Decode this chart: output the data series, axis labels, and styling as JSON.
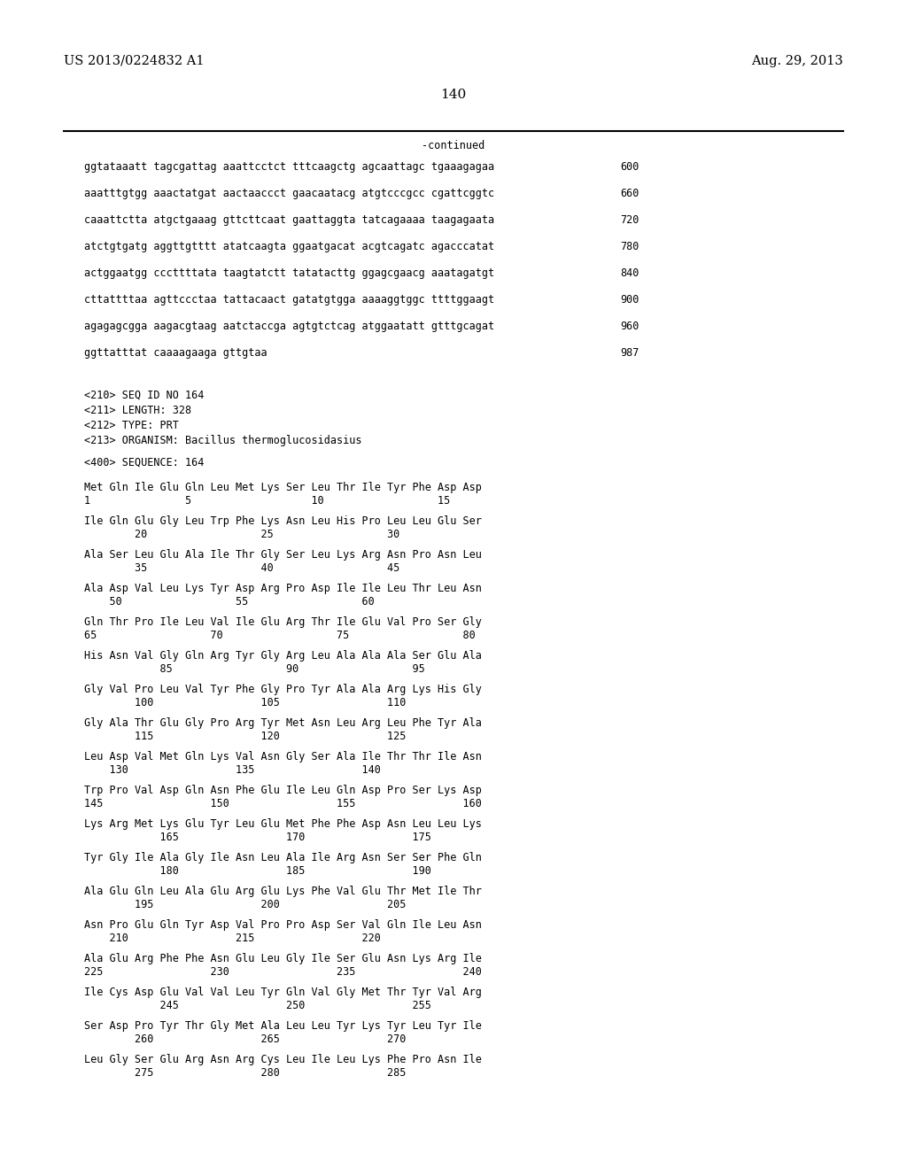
{
  "header_left": "US 2013/0224832 A1",
  "header_right": "Aug. 29, 2013",
  "page_number": "140",
  "continued_label": "-continued",
  "background_color": "#ffffff",
  "text_color": "#000000",
  "dna_lines": [
    [
      "ggtataaatt tagcgattag aaattcctct tttcaagctg agcaattagc tgaaagagaa",
      "600"
    ],
    [
      "aaatttgtgg aaactatgat aactaaccct gaacaatacg atgtcccgcc cgattcggtc",
      "660"
    ],
    [
      "caaattctta atgctgaaag gttcttcaat gaattaggta tatcagaaaa taagagaata",
      "720"
    ],
    [
      "atctgtgatg aggttgtttt atatcaagta ggaatgacat acgtcagatc agacccatat",
      "780"
    ],
    [
      "actggaatgg cccttttata taagtatctt tatatacttg ggagcgaacg aaatagatgt",
      "840"
    ],
    [
      "cttattttaa agttccctaa tattacaact gatatgtgga aaaaggtggc ttttggaagt",
      "900"
    ],
    [
      "agagagcgga aagacgtaag aatctaccga agtgtctcag atggaatatt gtttgcagat",
      "960"
    ],
    [
      "ggttatttat caaaagaaga gttgtaa",
      "987"
    ]
  ],
  "seq_info": [
    "<210> SEQ ID NO 164",
    "<211> LENGTH: 328",
    "<212> TYPE: PRT",
    "<213> ORGANISM: Bacillus thermoglucosidasius"
  ],
  "seq_label": "<400> SEQUENCE: 164",
  "protein_blocks": [
    {
      "aa": "Met Gln Ile Glu Gln Leu Met Lys Ser Leu Thr Ile Tyr Phe Asp Asp",
      "nums": "1               5                   10                  15"
    },
    {
      "aa": "Ile Gln Glu Gly Leu Trp Phe Lys Asn Leu His Pro Leu Leu Glu Ser",
      "nums": "        20                  25                  30"
    },
    {
      "aa": "Ala Ser Leu Glu Ala Ile Thr Gly Ser Leu Lys Arg Asn Pro Asn Leu",
      "nums": "        35                  40                  45"
    },
    {
      "aa": "Ala Asp Val Leu Lys Tyr Asp Arg Pro Asp Ile Ile Leu Thr Leu Asn",
      "nums": "    50                  55                  60"
    },
    {
      "aa": "Gln Thr Pro Ile Leu Val Ile Glu Arg Thr Ile Glu Val Pro Ser Gly",
      "nums": "65                  70                  75                  80"
    },
    {
      "aa": "His Asn Val Gly Gln Arg Tyr Gly Arg Leu Ala Ala Ala Ser Glu Ala",
      "nums": "            85                  90                  95"
    },
    {
      "aa": "Gly Val Pro Leu Val Tyr Phe Gly Pro Tyr Ala Ala Arg Lys His Gly",
      "nums": "        100                 105                 110"
    },
    {
      "aa": "Gly Ala Thr Glu Gly Pro Arg Tyr Met Asn Leu Arg Leu Phe Tyr Ala",
      "nums": "        115                 120                 125"
    },
    {
      "aa": "Leu Asp Val Met Gln Lys Val Asn Gly Ser Ala Ile Thr Thr Ile Asn",
      "nums": "    130                 135                 140"
    },
    {
      "aa": "Trp Pro Val Asp Gln Asn Phe Glu Ile Leu Gln Asp Pro Ser Lys Asp",
      "nums": "145                 150                 155                 160"
    },
    {
      "aa": "Lys Arg Met Lys Glu Tyr Leu Glu Met Phe Phe Asp Asn Leu Leu Lys",
      "nums": "            165                 170                 175"
    },
    {
      "aa": "Tyr Gly Ile Ala Gly Ile Asn Leu Ala Ile Arg Asn Ser Ser Phe Gln",
      "nums": "            180                 185                 190"
    },
    {
      "aa": "Ala Glu Gln Leu Ala Glu Arg Glu Lys Phe Val Glu Thr Met Ile Thr",
      "nums": "        195                 200                 205"
    },
    {
      "aa": "Asn Pro Glu Gln Tyr Asp Val Pro Pro Asp Ser Val Gln Ile Leu Asn",
      "nums": "    210                 215                 220"
    },
    {
      "aa": "Ala Glu Arg Phe Phe Asn Glu Leu Gly Ile Ser Glu Asn Lys Arg Ile",
      "nums": "225                 230                 235                 240"
    },
    {
      "aa": "Ile Cys Asp Glu Val Val Leu Tyr Gln Val Gly Met Thr Tyr Val Arg",
      "nums": "            245                 250                 255"
    },
    {
      "aa": "Ser Asp Pro Tyr Thr Gly Met Ala Leu Leu Tyr Lys Tyr Leu Tyr Ile",
      "nums": "        260                 265                 270"
    },
    {
      "aa": "Leu Gly Ser Glu Arg Asn Arg Cys Leu Ile Leu Lys Phe Pro Asn Ile",
      "nums": "        275                 280                 285"
    }
  ]
}
